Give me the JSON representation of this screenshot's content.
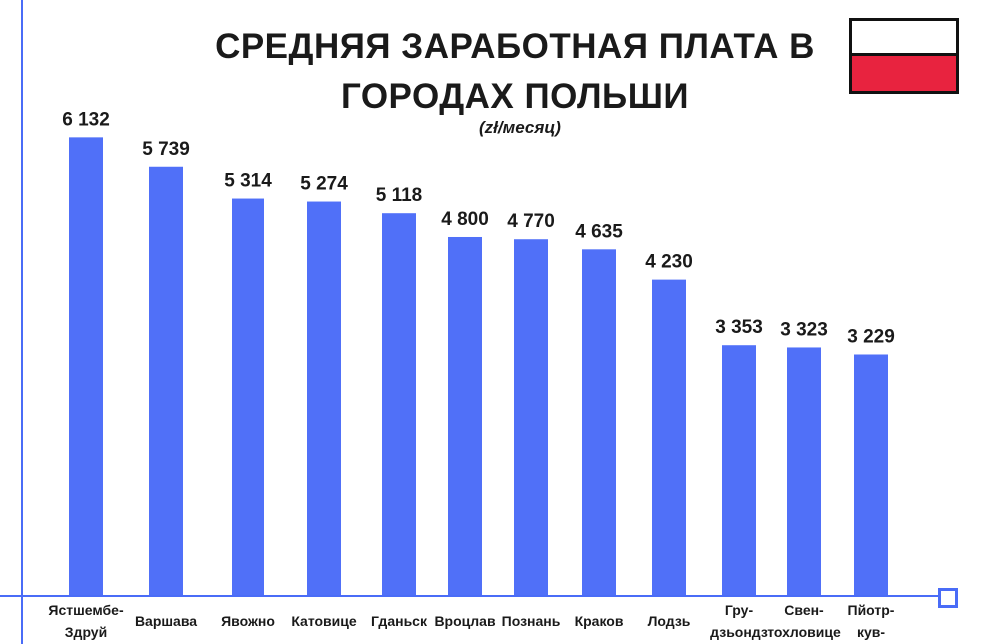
{
  "title": "СРЕДНЯЯ ЗАРАБОТНАЯ ПЛАТА В ГОРОДАХ ПОЛЬШИ",
  "subtitle": "(zł/месяц)",
  "flag": {
    "top_color": "#ffffff",
    "bottom_color": "#e8233f"
  },
  "colors": {
    "bar": "#5070f8",
    "axis": "#4a6cf7",
    "text": "#1a1a1a"
  },
  "chart_data": {
    "type": "bar",
    "title": "СРЕДНЯЯ ЗАРАБОТНАЯ ПЛАТА В ГОРОДАХ ПОЛЬШИ",
    "subtitle": "(zł/месяц)",
    "categories": [
      [
        "Ястшембе-",
        "Здруй"
      ],
      [
        "Варшава"
      ],
      [
        "Явожно"
      ],
      [
        "Катовице"
      ],
      [
        "Гданьск"
      ],
      [
        "Вроцлав"
      ],
      [
        "Познань"
      ],
      [
        "Краков"
      ],
      [
        "Лодзь"
      ],
      [
        "Гру-",
        "дзьондз"
      ],
      [
        "Свен-",
        "тохловице"
      ],
      [
        "Пйотр-",
        "кув-"
      ]
    ],
    "values": [
      6132,
      5739,
      5314,
      5274,
      5118,
      4800,
      4770,
      4635,
      4230,
      3353,
      3323,
      3229
    ],
    "value_labels": [
      "6 132",
      "5 739",
      "5 314",
      "5 274",
      "5 118",
      "4 800",
      "4 770",
      "4 635",
      "4 230",
      "3 353",
      "3 323",
      "3 229"
    ],
    "xlabel": "",
    "ylabel": "",
    "ylim": [
      0,
      7300
    ],
    "grid": false,
    "legend": "none"
  }
}
